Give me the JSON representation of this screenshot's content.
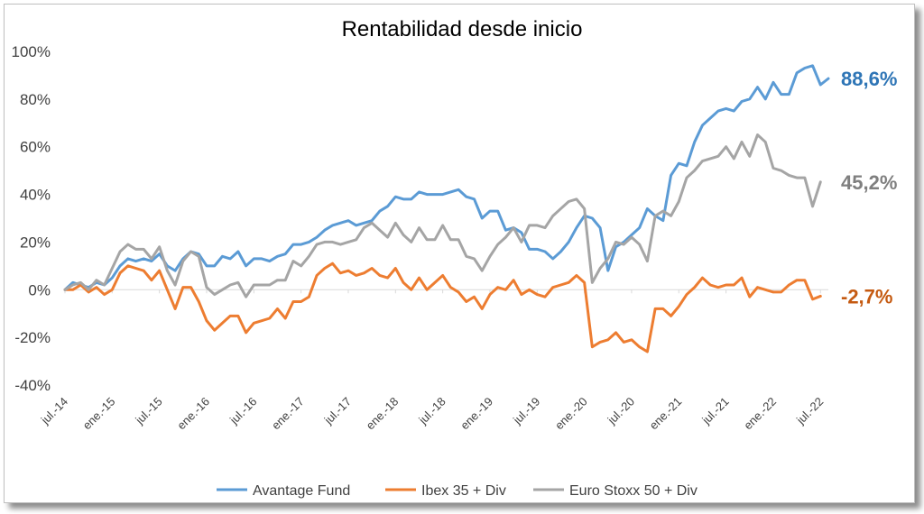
{
  "chart_data": {
    "type": "line",
    "title": "Rentabilidad desde inicio",
    "xlabel": "",
    "ylabel": "",
    "ylim": [
      -40,
      100
    ],
    "yticks": [
      "100%",
      "80%",
      "60%",
      "40%",
      "20%",
      "0%",
      "-20%",
      "-40%"
    ],
    "ytick_values": [
      100,
      80,
      60,
      40,
      20,
      0,
      -20,
      -40
    ],
    "x_tick_labels": [
      "jul.-14",
      "ene.-15",
      "jul.-15",
      "ene.-16",
      "jul.-16",
      "ene.-17",
      "jul.-17",
      "ene.-18",
      "jul.-18",
      "ene.-19",
      "jul.-19",
      "ene.-20",
      "jul.-20",
      "ene.-21",
      "jul.-21",
      "ene.-22",
      "jul.-22"
    ],
    "x_tick_months": [
      0,
      6,
      12,
      18,
      24,
      30,
      36,
      42,
      48,
      54,
      60,
      66,
      72,
      78,
      84,
      90,
      96
    ],
    "x_start": "jul.-14",
    "x_unit": "month",
    "grid": false,
    "legend_position": "bottom",
    "series": [
      {
        "name": "Avantage Fund",
        "color": "#5b9bd5",
        "end_label": "88,6%",
        "label_color": "#2e75b6",
        "values": [
          0,
          3,
          2,
          1,
          3,
          2,
          5,
          10,
          13,
          12,
          13,
          12,
          15,
          10,
          8,
          13,
          16,
          15,
          10,
          10,
          14,
          13,
          16,
          10,
          13,
          13,
          12,
          14,
          15,
          19,
          19,
          20,
          22,
          25,
          27,
          28,
          29,
          27,
          28,
          29,
          33,
          35,
          39,
          38,
          38,
          41,
          40,
          40,
          40,
          41,
          42,
          39,
          38,
          30,
          33,
          33,
          25,
          26,
          24,
          17,
          17,
          16,
          13,
          16,
          20,
          26,
          31,
          30,
          26,
          8,
          18,
          20,
          23,
          26,
          34,
          31,
          29,
          48,
          53,
          52,
          62,
          69,
          72,
          75,
          76,
          75,
          79,
          80,
          85,
          80,
          87,
          82,
          82,
          91,
          93,
          94,
          86,
          88.6
        ]
      },
      {
        "name": "Ibex 35 + Div",
        "color": "#ed7d31",
        "end_label": "-2,7%",
        "label_color": "#c55a11",
        "values": [
          0,
          0,
          2,
          -1,
          1,
          -2,
          0,
          7,
          10,
          9,
          8,
          4,
          8,
          0,
          -8,
          1,
          1,
          -5,
          -13,
          -17,
          -14,
          -11,
          -11,
          -18,
          -14,
          -13,
          -12,
          -8,
          -12,
          -5,
          -5,
          -3,
          6,
          9,
          11,
          7,
          8,
          6,
          7,
          9,
          6,
          5,
          9,
          3,
          0,
          5,
          0,
          3,
          6,
          1,
          -1,
          -5,
          -3,
          -8,
          -2,
          1,
          0,
          4,
          -2,
          0,
          -2,
          -3,
          1,
          2,
          3,
          6,
          3,
          -24,
          -22,
          -21,
          -18,
          -22,
          -21,
          -24,
          -26,
          -8,
          -8,
          -11,
          -7,
          -2,
          1,
          5,
          2,
          1,
          2,
          2,
          5,
          -3,
          1,
          0,
          -1,
          -1,
          2,
          4,
          4,
          -4,
          -2.7
        ]
      },
      {
        "name": "Euro Stoxx 50 + Div",
        "color": "#a5a5a5",
        "end_label": "45,2%",
        "label_color": "#7f7f7f",
        "values": [
          0,
          2,
          3,
          0,
          4,
          2,
          9,
          16,
          19,
          17,
          17,
          13,
          18,
          8,
          2,
          12,
          16,
          14,
          1,
          -2,
          0,
          2,
          3,
          -3,
          2,
          2,
          2,
          4,
          4,
          12,
          10,
          14,
          19,
          20,
          20,
          19,
          20,
          21,
          26,
          28,
          25,
          22,
          28,
          23,
          20,
          26,
          21,
          21,
          27,
          21,
          21,
          14,
          13,
          8,
          14,
          19,
          22,
          26,
          20,
          27,
          27,
          26,
          31,
          34,
          37,
          38,
          34,
          3,
          9,
          13,
          20,
          19,
          22,
          19,
          12,
          31,
          33,
          31,
          37,
          47,
          50,
          54,
          55,
          56,
          60,
          55,
          62,
          56,
          65,
          62,
          51,
          50,
          48,
          47,
          47,
          35,
          45.2
        ]
      }
    ]
  }
}
